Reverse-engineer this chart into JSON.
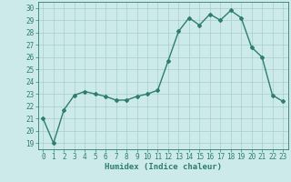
{
  "x": [
    0,
    1,
    2,
    3,
    4,
    5,
    6,
    7,
    8,
    9,
    10,
    11,
    12,
    13,
    14,
    15,
    16,
    17,
    18,
    19,
    20,
    21,
    22,
    23
  ],
  "y": [
    21,
    19,
    21.7,
    22.9,
    23.2,
    23.0,
    22.8,
    22.5,
    22.5,
    22.8,
    23.0,
    23.3,
    25.7,
    28.1,
    29.2,
    28.6,
    29.5,
    29.0,
    29.8,
    29.2,
    26.8,
    26.0,
    22.9,
    22.4
  ],
  "line_color": "#2e7d6e",
  "marker": "D",
  "marker_size": 2,
  "linewidth": 1.0,
  "xlabel": "Humidex (Indice chaleur)",
  "xlim": [
    -0.5,
    23.5
  ],
  "ylim": [
    18.5,
    30.5
  ],
  "yticks": [
    19,
    20,
    21,
    22,
    23,
    24,
    25,
    26,
    27,
    28,
    29,
    30
  ],
  "xticks": [
    0,
    1,
    2,
    3,
    4,
    5,
    6,
    7,
    8,
    9,
    10,
    11,
    12,
    13,
    14,
    15,
    16,
    17,
    18,
    19,
    20,
    21,
    22,
    23
  ],
  "bg_color": "#cceaea",
  "grid_color": "#aacccc",
  "fig_bg": "#cceaea",
  "tick_fontsize": 5.5,
  "xlabel_fontsize": 6.5
}
